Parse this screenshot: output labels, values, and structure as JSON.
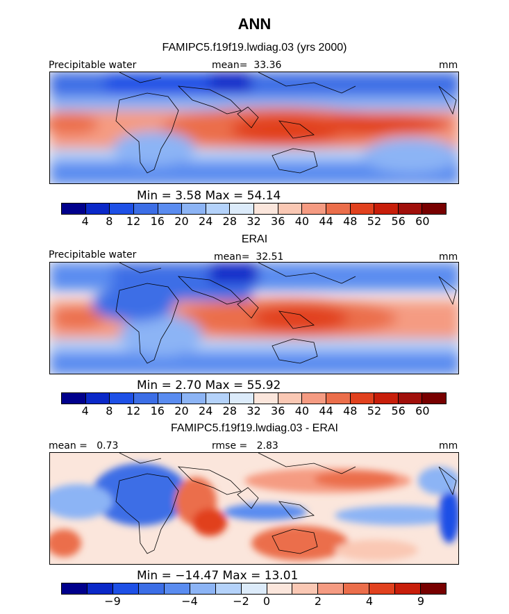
{
  "title": "ANN",
  "panels": [
    {
      "id": "model",
      "title": "FAMIPC5.f19f19.lwdiag.03 (yrs 2000)",
      "variable_label": "Precipitable water",
      "stat_left_label": "",
      "stat_label": "mean=",
      "stat_value": "33.36",
      "units": "mm",
      "min_max_text": "Min =    3.58 Max =   54.14",
      "colorbar": {
        "ticks": [
          "4",
          "8",
          "12",
          "16",
          "20",
          "24",
          "28",
          "32",
          "36",
          "40",
          "44",
          "48",
          "52",
          "56",
          "60"
        ],
        "colors": [
          "#00008c",
          "#0a28c8",
          "#1e50e6",
          "#3c6ee6",
          "#5a8cf0",
          "#8cb4f5",
          "#b4d2fa",
          "#dcebfa",
          "#fbe6dc",
          "#fac8b4",
          "#f59b82",
          "#eb6e4b",
          "#e1411e",
          "#c81e0a",
          "#a00f0a",
          "#780000"
        ]
      }
    },
    {
      "id": "obs",
      "title": "ERAI",
      "variable_label": "Precipitable water",
      "stat_left_label": "",
      "stat_label": "mean=",
      "stat_value": "32.51",
      "units": "mm",
      "min_max_text": "Min =    2.70 Max =   55.92",
      "colorbar": {
        "ticks": [
          "4",
          "8",
          "12",
          "16",
          "20",
          "24",
          "28",
          "32",
          "36",
          "40",
          "44",
          "48",
          "52",
          "56",
          "60"
        ],
        "colors": [
          "#00008c",
          "#0a28c8",
          "#1e50e6",
          "#3c6ee6",
          "#5a8cf0",
          "#8cb4f5",
          "#b4d2fa",
          "#dcebfa",
          "#fbe6dc",
          "#fac8b4",
          "#f59b82",
          "#eb6e4b",
          "#e1411e",
          "#c81e0a",
          "#a00f0a",
          "#780000"
        ]
      }
    },
    {
      "id": "diff",
      "title": "FAMIPC5.f19f19.lwdiag.03 - ERAI",
      "variable_label": "",
      "stat_left_label": "mean =",
      "stat_left_value": "0.73",
      "stat_label": "rmse =",
      "stat_value": "2.83",
      "units": "mm",
      "min_max_text": "Min = −14.47 Max =   13.01",
      "colorbar": {
        "ticks": [
          "−9",
          "−4",
          "−2",
          "0",
          "2",
          "4",
          "9"
        ],
        "colors": [
          "#00008c",
          "#0a28c8",
          "#1e50e6",
          "#3c6ee6",
          "#5a8cf0",
          "#8cb4f5",
          "#b4d2fa",
          "#dcebfa",
          "#fbe6dc",
          "#fac8b4",
          "#f59b82",
          "#eb6e4b",
          "#e1411e",
          "#c81e0a",
          "#780000"
        ]
      }
    }
  ],
  "chart_data": [
    {
      "type": "heatmap",
      "title": "FAMIPC5.f19f19.lwdiag.03 (yrs 2000)",
      "variable": "Precipitable water",
      "units": "mm",
      "mean": 33.36,
      "min": 3.58,
      "max": 54.14,
      "contour_levels": [
        4,
        8,
        12,
        16,
        20,
        24,
        28,
        32,
        36,
        40,
        44,
        48,
        52,
        56,
        60
      ]
    },
    {
      "type": "heatmap",
      "title": "ERAI",
      "variable": "Precipitable water",
      "units": "mm",
      "mean": 32.51,
      "min": 2.7,
      "max": 55.92,
      "contour_levels": [
        4,
        8,
        12,
        16,
        20,
        24,
        28,
        32,
        36,
        40,
        44,
        48,
        52,
        56,
        60
      ]
    },
    {
      "type": "heatmap",
      "title": "FAMIPC5.f19f19.lwdiag.03 - ERAI",
      "units": "mm",
      "mean": 0.73,
      "rmse": 2.83,
      "min": -14.47,
      "max": 13.01,
      "contour_levels": [
        -9,
        -4,
        -2,
        0,
        2,
        4,
        9
      ]
    }
  ]
}
